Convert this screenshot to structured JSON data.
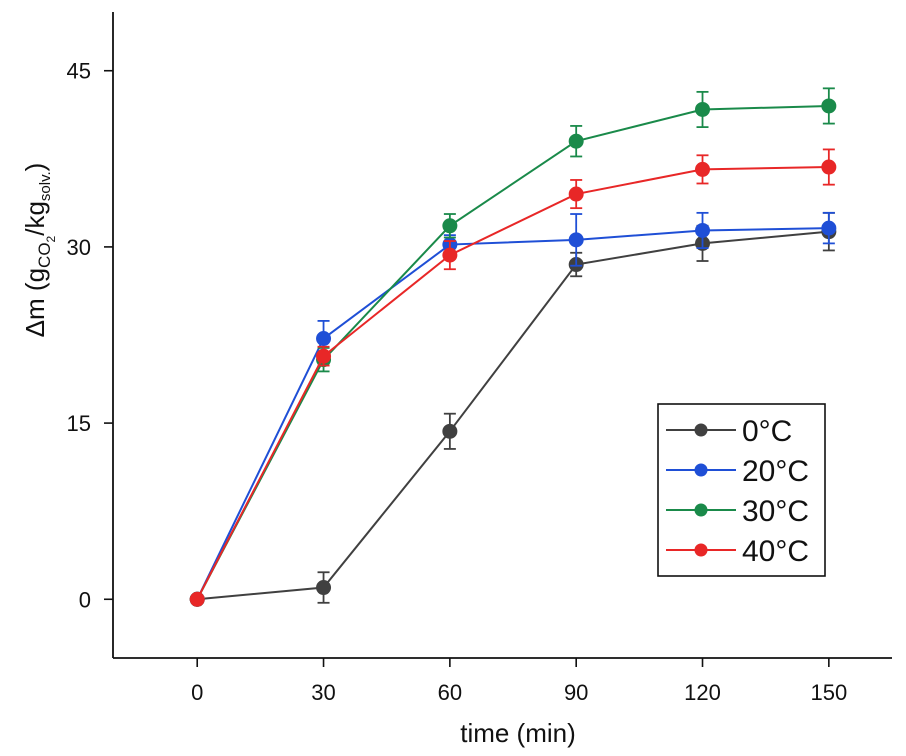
{
  "chart_data": {
    "type": "line",
    "xlabel": "time (min)",
    "ylabel": {
      "prefix": "Δm (g",
      "sub1": "CO",
      "sub1_sub": "2",
      "mid": "/kg",
      "sub2": "solv.",
      "suffix": ")"
    },
    "x": [
      0,
      30,
      60,
      90,
      120,
      150
    ],
    "x_ticks": [
      "0",
      "30",
      "60",
      "90",
      "120",
      "150"
    ],
    "y_ticks": [
      "0",
      "15",
      "30",
      "45"
    ],
    "xlim": [
      -20,
      165
    ],
    "ylim": [
      -5,
      50
    ],
    "grid": false,
    "legend_position": "lower-right",
    "series": [
      {
        "name": "0°C",
        "color": "#404040",
        "values": [
          0,
          1.0,
          14.3,
          28.5,
          30.3,
          31.3
        ],
        "errors": [
          0,
          1.3,
          1.5,
          1.0,
          1.5,
          1.6
        ]
      },
      {
        "name": "20°C",
        "color": "#1f4fd6",
        "values": [
          0,
          22.2,
          30.2,
          30.6,
          31.4,
          31.6
        ],
        "errors": [
          0,
          1.5,
          0.8,
          2.2,
          1.5,
          1.3
        ]
      },
      {
        "name": "30°C",
        "color": "#1a8a4a",
        "values": [
          0,
          20.4,
          31.8,
          39.0,
          41.7,
          42.0
        ],
        "errors": [
          0,
          1.0,
          1.0,
          1.3,
          1.5,
          1.5
        ]
      },
      {
        "name": "40°C",
        "color": "#e82727",
        "values": [
          0,
          20.7,
          29.3,
          34.5,
          36.6,
          36.8
        ],
        "errors": [
          0,
          0.8,
          1.2,
          1.2,
          1.2,
          1.5
        ]
      }
    ]
  }
}
